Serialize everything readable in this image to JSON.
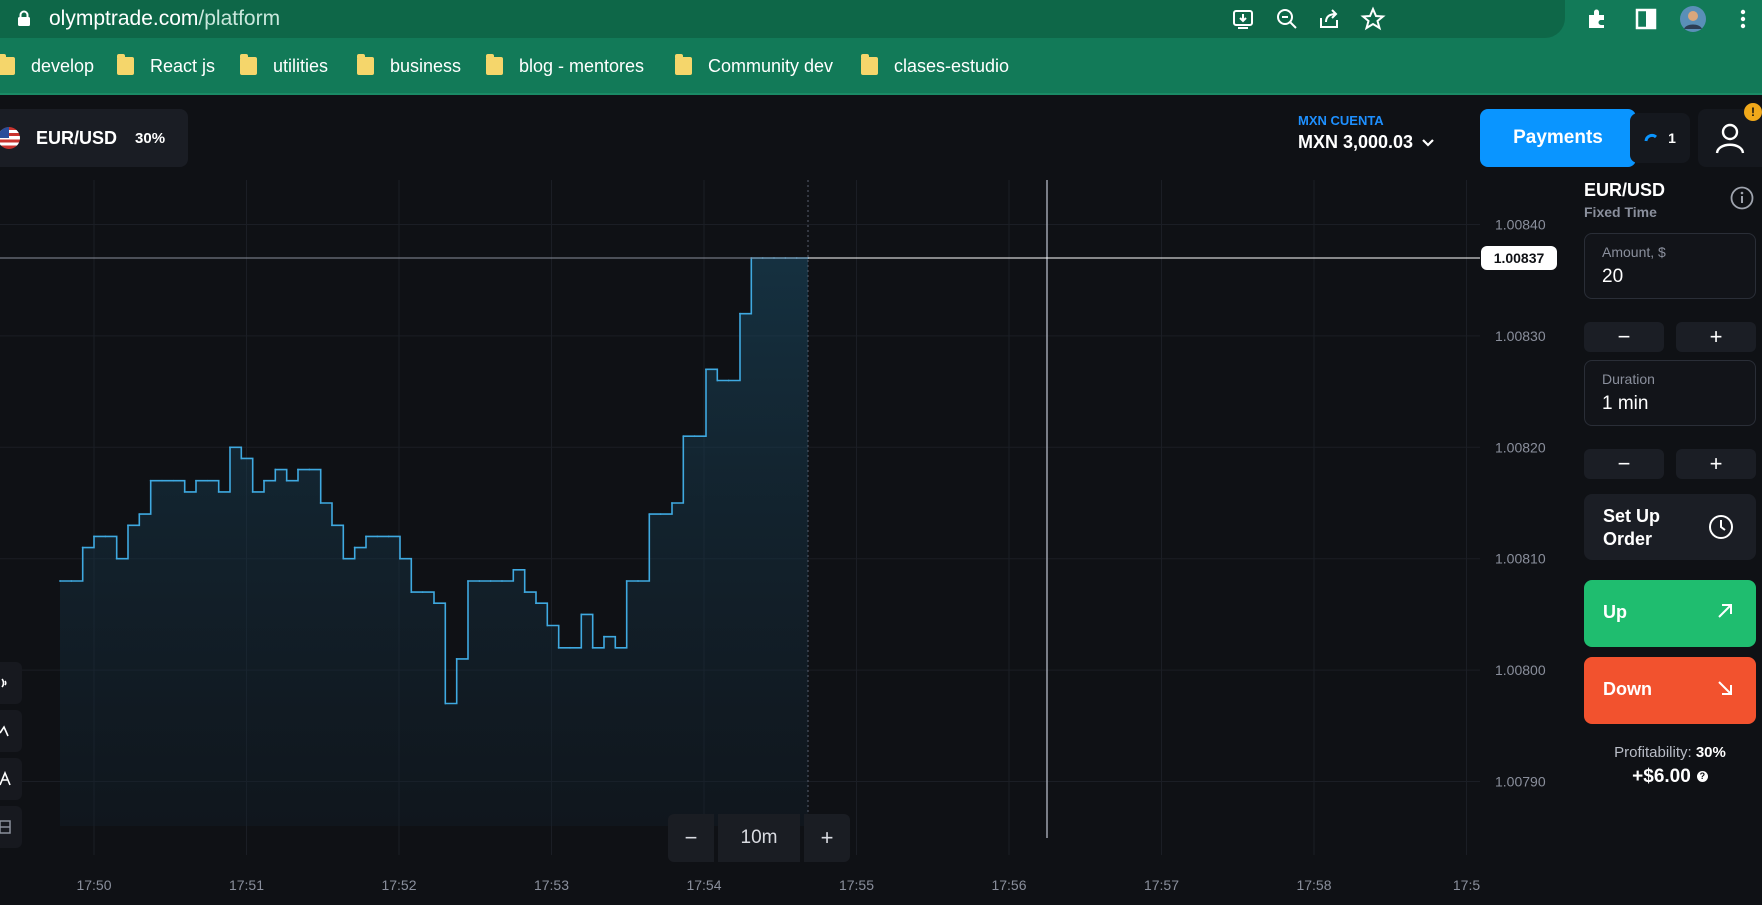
{
  "browser": {
    "url_host": "olymptrade.com",
    "url_path": "/platform",
    "bookmarks": [
      "develop",
      "React js",
      "utilities",
      "business",
      "blog - mentores",
      "Community dev",
      "clases-estudio"
    ]
  },
  "header": {
    "asset_name": "EUR/USD",
    "asset_profit": "30%",
    "account_label": "MXN CUENTA",
    "account_balance": "MXN 3,000.03",
    "payments_label": "Payments",
    "open_trades_count": "1",
    "profile_badge": "!"
  },
  "panel": {
    "asset": "EUR/USD",
    "trade_type": "Fixed Time",
    "amount_label": "Amount, $",
    "amount_value": "20",
    "duration_label": "Duration",
    "duration_value": "1 min",
    "minus": "−",
    "plus": "+",
    "setup_order_label": "Set Up Order",
    "up_label": "Up",
    "down_label": "Down",
    "profitability_label": "Profitability:",
    "profitability_value": "30%",
    "payout": "+$6.00",
    "help": "?"
  },
  "zoom": {
    "minus": "−",
    "value": "10m",
    "plus": "+"
  },
  "colors": {
    "accent_blue": "#0a95ff",
    "up_green": "#1fbd6f",
    "down_red": "#f2522e",
    "line": "#3fa9e0",
    "browser_green": "#127a58"
  },
  "chart_data": {
    "type": "line",
    "series": [
      {
        "points": [
          [
            "17:49:45",
            1.00808
          ],
          [
            "17:49:50",
            1.00808
          ],
          [
            "17:49:55",
            1.00811
          ],
          [
            "17:50:00",
            1.00812
          ],
          [
            "17:50:05",
            1.00812
          ],
          [
            "17:50:10",
            1.0081
          ],
          [
            "17:50:15",
            1.00813
          ],
          [
            "17:50:20",
            1.00814
          ],
          [
            "17:50:25",
            1.00817
          ],
          [
            "17:50:30",
            1.00817
          ],
          [
            "17:50:35",
            1.00817
          ],
          [
            "17:50:40",
            1.00816
          ],
          [
            "17:50:45",
            1.00817
          ],
          [
            "17:50:50",
            1.00817
          ],
          [
            "17:50:55",
            1.00816
          ],
          [
            "17:51:00",
            1.0082
          ],
          [
            "17:51:05",
            1.00819
          ],
          [
            "17:51:10",
            1.00816
          ],
          [
            "17:51:15",
            1.00817
          ],
          [
            "17:51:20",
            1.00818
          ],
          [
            "17:51:25",
            1.00817
          ],
          [
            "17:51:30",
            1.00818
          ],
          [
            "17:51:35",
            1.00818
          ],
          [
            "17:51:40",
            1.00815
          ],
          [
            "17:51:45",
            1.00813
          ],
          [
            "17:51:50",
            1.0081
          ],
          [
            "17:51:55",
            1.00811
          ],
          [
            "17:52:00",
            1.00812
          ],
          [
            "17:52:05",
            1.00812
          ],
          [
            "17:52:10",
            1.00812
          ],
          [
            "17:52:15",
            1.0081
          ],
          [
            "17:52:20",
            1.00807
          ],
          [
            "17:52:25",
            1.00807
          ],
          [
            "17:52:30",
            1.00806
          ],
          [
            "17:52:35",
            1.00797
          ],
          [
            "17:52:40",
            1.00801
          ],
          [
            "17:52:45",
            1.00808
          ],
          [
            "17:52:50",
            1.00808
          ],
          [
            "17:52:55",
            1.00808
          ],
          [
            "17:53:00",
            1.00808
          ],
          [
            "17:53:05",
            1.00809
          ],
          [
            "17:53:10",
            1.00807
          ],
          [
            "17:53:15",
            1.00806
          ],
          [
            "17:53:20",
            1.00804
          ],
          [
            "17:53:25",
            1.00802
          ],
          [
            "17:53:30",
            1.00802
          ],
          [
            "17:53:35",
            1.00805
          ],
          [
            "17:53:40",
            1.00802
          ],
          [
            "17:53:45",
            1.00803
          ],
          [
            "17:53:50",
            1.00802
          ],
          [
            "17:53:55",
            1.00808
          ],
          [
            "17:54:00",
            1.00808
          ],
          [
            "17:54:05",
            1.00814
          ],
          [
            "17:54:10",
            1.00814
          ],
          [
            "17:54:15",
            1.00815
          ],
          [
            "17:54:20",
            1.00821
          ],
          [
            "17:54:25",
            1.00821
          ],
          [
            "17:54:30",
            1.00827
          ],
          [
            "17:54:35",
            1.00826
          ],
          [
            "17:54:40",
            1.00826
          ],
          [
            "17:54:45",
            1.00832
          ],
          [
            "17:54:50",
            1.00837
          ],
          [
            "17:54:55",
            1.00837
          ],
          [
            "17:55:00",
            1.00837
          ],
          [
            "17:55:05",
            1.00837
          ],
          [
            "17:55:10",
            1.00837
          ],
          [
            "17:55:15",
            1.00837
          ]
        ]
      }
    ],
    "x_ticks": [
      "17:50",
      "17:51",
      "17:52",
      "17:53",
      "17:54",
      "17:55",
      "17:56",
      "17:57",
      "17:58",
      "17:5"
    ],
    "y_ticks": [
      "1.00840",
      "1.00830",
      "1.00820",
      "1.00810",
      "1.00800",
      "1.00790"
    ],
    "current_price": "1.00837",
    "ylim": [
      1.00786,
      1.00844
    ],
    "grid": true
  }
}
